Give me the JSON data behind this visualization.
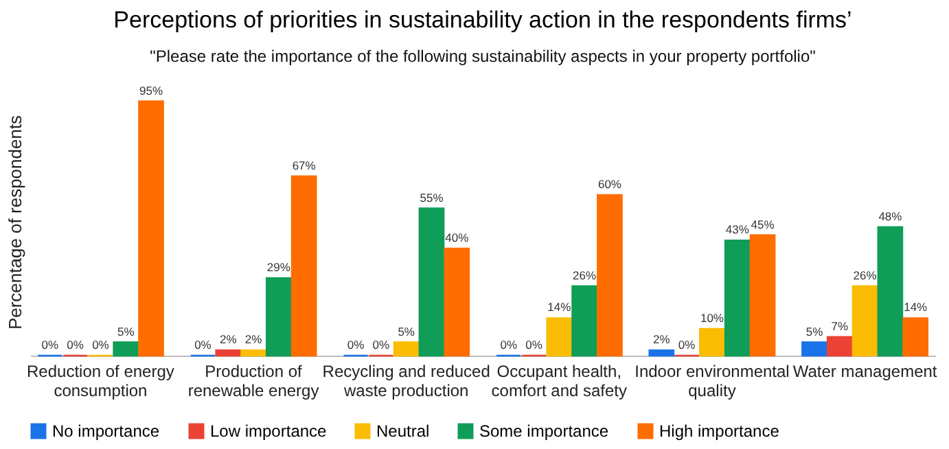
{
  "chart_data": {
    "type": "bar",
    "title": "Perceptions of priorities in sustainability action in the respondents firms’",
    "subtitle": "\"Please rate the importance of the following sustainability aspects in your property portfolio\"",
    "ylabel": "Percentage of respondents",
    "categories": [
      "Reduction of energy consumption",
      "Production of renewable energy",
      "Recycling and reduced waste production",
      "Occupant health, comfort and safety",
      "Indoor environmental quality",
      "Water management"
    ],
    "series": [
      {
        "name": "No importance",
        "color": "#1a73e8",
        "values": [
          0,
          0,
          0,
          0,
          2,
          5
        ],
        "value_labels": [
          "0%",
          "0%",
          "0%",
          "0%",
          "2%",
          "5%"
        ]
      },
      {
        "name": "Low importance",
        "color": "#ea4335",
        "values": [
          0,
          2,
          0,
          0,
          0,
          7
        ],
        "value_labels": [
          "0%",
          "2%",
          "0%",
          "0%",
          "0%",
          "7%"
        ]
      },
      {
        "name": "Neutral",
        "color": "#fbbc04",
        "values": [
          0,
          2,
          5,
          14,
          10,
          26
        ],
        "value_labels": [
          "0%",
          "2%",
          "5%",
          "14%",
          "10%",
          "26%"
        ]
      },
      {
        "name": "Some importance",
        "color": "#0f9d58",
        "values": [
          5,
          29,
          55,
          26,
          43,
          48
        ],
        "value_labels": [
          "5%",
          "29%",
          "55%",
          "26%",
          "43%",
          "48%"
        ]
      },
      {
        "name": "High importance",
        "color": "#ff6d01",
        "values": [
          95,
          67,
          40,
          60,
          45,
          14
        ],
        "value_labels": [
          "95%",
          "67%",
          "40%",
          "60%",
          "45%",
          "14%"
        ]
      }
    ],
    "legend": "bottom"
  }
}
